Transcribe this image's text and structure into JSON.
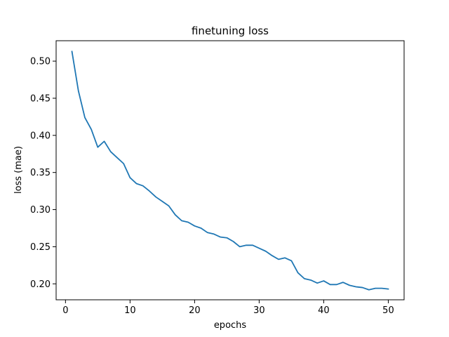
{
  "chart_data": {
    "type": "line",
    "title": "finetuning loss",
    "xlabel": "epochs",
    "ylabel": "loss (mae)",
    "xlim": [
      -1.45,
      52.45
    ],
    "ylim": [
      0.1785,
      0.5275
    ],
    "xticks": [
      0,
      10,
      20,
      30,
      40,
      50
    ],
    "yticks": [
      0.2,
      0.25,
      0.3,
      0.35,
      0.4,
      0.45,
      0.5
    ],
    "ytick_format": 2,
    "grid": false,
    "line_color": "#1f77b4",
    "series": [
      {
        "x": [
          1,
          2,
          3,
          4,
          5,
          6,
          7,
          8,
          9,
          10,
          11,
          12,
          13,
          14,
          15,
          16,
          17,
          18,
          19,
          20,
          21,
          22,
          23,
          24,
          25,
          26,
          27,
          28,
          29,
          30,
          31,
          32,
          33,
          34,
          35,
          36,
          37,
          38,
          39,
          40,
          41,
          42,
          43,
          44,
          45,
          46,
          47,
          48,
          49,
          50
        ],
        "values": [
          0.513,
          0.46,
          0.424,
          0.408,
          0.384,
          0.392,
          0.378,
          0.37,
          0.362,
          0.343,
          0.335,
          0.332,
          0.325,
          0.317,
          0.311,
          0.305,
          0.293,
          0.285,
          0.283,
          0.278,
          0.275,
          0.269,
          0.267,
          0.263,
          0.262,
          0.257,
          0.25,
          0.252,
          0.252,
          0.248,
          0.244,
          0.238,
          0.233,
          0.235,
          0.231,
          0.215,
          0.207,
          0.205,
          0.201,
          0.204,
          0.199,
          0.199,
          0.202,
          0.198,
          0.196,
          0.195,
          0.192,
          0.194,
          0.194,
          0.193
        ]
      }
    ]
  }
}
